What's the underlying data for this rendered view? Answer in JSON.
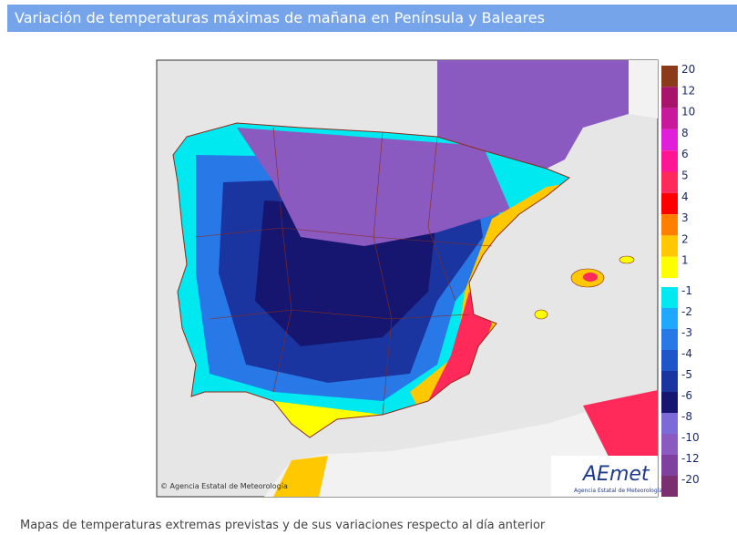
{
  "header": {
    "title": "Variación de temperaturas máximas de mañana en Península y Baleares"
  },
  "map": {
    "copyright": "© Agencia Estatal de Meteorología",
    "logo": {
      "name": "AEmet",
      "subtitle": "Agencia Estatal de Meteorología"
    }
  },
  "legend": {
    "items": [
      {
        "label": "20",
        "color": "#8b3a1a"
      },
      {
        "label": "12",
        "color": "#a8146a"
      },
      {
        "label": "10",
        "color": "#c8189c"
      },
      {
        "label": "8",
        "color": "#e020d8"
      },
      {
        "label": "6",
        "color": "#ff1493"
      },
      {
        "label": "5",
        "color": "#ff2a5a"
      },
      {
        "label": "4",
        "color": "#ff0000"
      },
      {
        "label": "3",
        "color": "#ff8000"
      },
      {
        "label": "2",
        "color": "#ffc800"
      },
      {
        "label": "1",
        "color": "#ffff00"
      },
      {
        "label": "-1",
        "color": "#00e8f0"
      },
      {
        "label": "-2",
        "color": "#20a8ff"
      },
      {
        "label": "-3",
        "color": "#2878e8"
      },
      {
        "label": "-4",
        "color": "#1e55c8"
      },
      {
        "label": "-5",
        "color": "#1a35a0"
      },
      {
        "label": "-6",
        "color": "#161670"
      },
      {
        "label": "-8",
        "color": "#7b6ad8"
      },
      {
        "label": "-10",
        "color": "#8a5ac0"
      },
      {
        "label": "-12",
        "color": "#8040a0"
      },
      {
        "label": "-20",
        "color": "#7a3070"
      }
    ]
  },
  "caption": "Mapas de temperaturas extremas previstas y de sus variaciones respecto al día anterior"
}
